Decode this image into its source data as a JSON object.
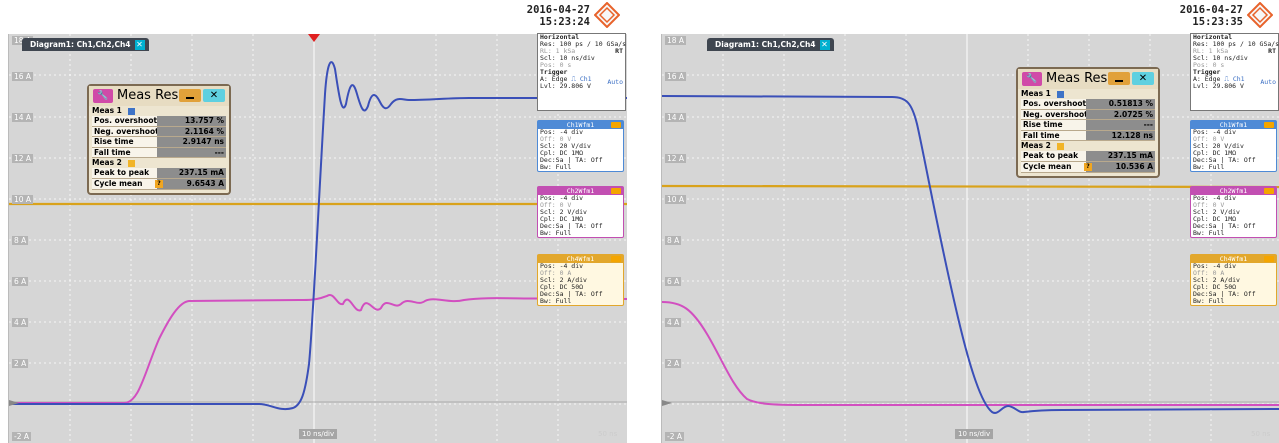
{
  "left": {
    "timestamp": {
      "date": "2016-04-27",
      "time": "15:23:24"
    },
    "diagram_title": "Diagram1: Ch1,Ch2,Ch4",
    "y_labels": [
      "18 A",
      "16 A",
      "14 A",
      "12 A",
      "10 A",
      "8 A",
      "6 A",
      "4 A",
      "2 A",
      "0 A",
      "-2 A"
    ],
    "x_div_label": "10 ns/div",
    "bottom_right_label": "50 ns",
    "meas": {
      "title": "Meas Resu",
      "sec1": "Meas 1",
      "rows1": [
        {
          "k": "Pos. overshoot",
          "v": "13.757 %"
        },
        {
          "k": "Neg. overshoot",
          "v": "2.1164 %"
        },
        {
          "k": "Rise time",
          "v": "2.9147 ns"
        },
        {
          "k": "Fall time",
          "v": "---"
        }
      ],
      "sec2": "Meas 2",
      "rows2": [
        {
          "k": "Peak to peak",
          "v": "237.15 mA"
        },
        {
          "k": "Cycle mean",
          "v": "9.6543 A"
        }
      ]
    },
    "horizontal": {
      "head": "Horizontal",
      "res": "Res: 100 ps / 10 GSa/s",
      "rl": "RL:  1 kSa",
      "rl_tag": "RT",
      "scl": "Scl:  10 ns/div",
      "pos": "Pos: 0 s",
      "trigger": "Trigger",
      "auto": "Auto",
      "a": "A:  Edge",
      "a_ch": "Ch1",
      "lvl": "Lvl:  29.806 V"
    },
    "wfms": [
      {
        "name": "Ch1Wfm1",
        "lines": [
          "Pos: -4 div",
          "Off: 0 V",
          "Scl: 20 V/div",
          "Cpl: DC 1MΩ",
          "Dec:Sa | TA: Off",
          "Bw: Full"
        ]
      },
      {
        "name": "Ch2Wfm1",
        "lines": [
          "Pos: -4 div",
          "Off: 0 V",
          "Scl: 2 V/div",
          "Cpl: DC 1MΩ",
          "Dec:Sa | TA: Off",
          "Bw: Full"
        ]
      },
      {
        "name": "Ch4Wfm1",
        "lines": [
          "Pos: -4 div",
          "Off: 0 A",
          "Scl: 2 A/div",
          "Cpl: DC 50Ω",
          "Dec:Sa | TA: Off",
          "Bw: Full"
        ]
      }
    ]
  },
  "right": {
    "timestamp": {
      "date": "2016-04-27",
      "time": "15:23:35"
    },
    "diagram_title": "Diagram1: Ch1,Ch2,Ch4",
    "y_labels": [
      "18 A",
      "16 A",
      "14 A",
      "12 A",
      "10 A",
      "8 A",
      "6 A",
      "4 A",
      "2 A",
      "0 A",
      "-2 A"
    ],
    "x_div_label": "10 ns/div",
    "bottom_right_label": "50 ns",
    "meas": {
      "title": "Meas Resu",
      "sec1": "Meas 1",
      "rows1": [
        {
          "k": "Pos. overshoot",
          "v": "0.51813 %"
        },
        {
          "k": "Neg. overshoot",
          "v": "2.0725 %"
        },
        {
          "k": "Rise time",
          "v": "---"
        },
        {
          "k": "Fall time",
          "v": "12.128 ns"
        }
      ],
      "sec2": "Meas 2",
      "rows2": [
        {
          "k": "Peak to peak",
          "v": "237.15 mA"
        },
        {
          "k": "Cycle mean",
          "v": "10.536 A"
        }
      ]
    },
    "horizontal": {
      "head": "Horizontal",
      "res": "Res: 100 ps / 10 GSa/s",
      "rl": "RL:  1 kSa",
      "rl_tag": "RT",
      "scl": "Scl:  10 ns/div",
      "pos": "Pos: 0 s",
      "trigger": "Trigger",
      "auto": "Auto",
      "a": "A:  Edge",
      "a_ch": "Ch1",
      "lvl": "Lvl:  29.806 V"
    },
    "wfms": [
      {
        "name": "Ch1Wfm1",
        "lines": [
          "Pos: -4 div",
          "Off: 0 V",
          "Scl: 20 V/div",
          "Cpl: DC 1MΩ",
          "Dec:Sa | TA: Off",
          "Bw: Full"
        ]
      },
      {
        "name": "Ch2Wfm1",
        "lines": [
          "Pos: -4 div",
          "Off: 0 V",
          "Scl: 2 V/div",
          "Cpl: DC 1MΩ",
          "Dec:Sa | TA: Off",
          "Bw: Full"
        ]
      },
      {
        "name": "Ch4Wfm1",
        "lines": [
          "Pos: -4 div",
          "Off: 0 A",
          "Scl: 2 A/div",
          "Cpl: DC 50Ω",
          "Dec:Sa | TA: Off",
          "Bw: Full"
        ]
      }
    ]
  },
  "colors": {
    "ch1_blue": "#3a4fb8",
    "ch2_yellow": "#d9a21b",
    "ch4_pink": "#d24fc0",
    "ch1_tab": "#4e8ad6",
    "ch2_tab": "#c24fb2",
    "ch4_tab": "#e2a72c"
  }
}
